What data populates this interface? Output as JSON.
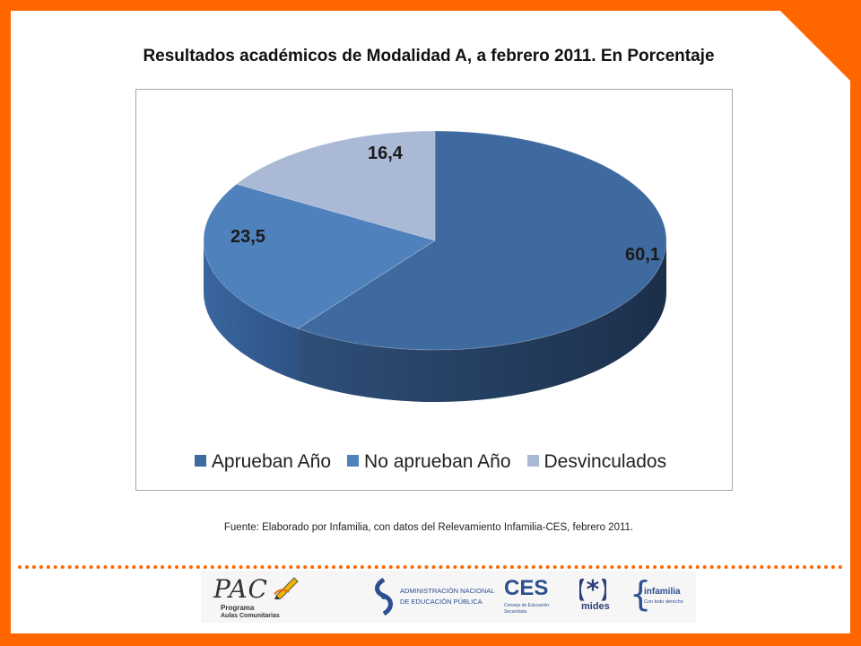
{
  "title": "Resultados académicos de Modalidad A, a febrero 2011. En Porcentaje",
  "source": "Fuente: Elaborado por Infamilia, con datos del Relevamiento Infamilia-CES, febrero 2011.",
  "colors": {
    "border": "#ff6600",
    "aprueban": "#3f6a9f",
    "no_aprueban": "#4f81bd",
    "desvinculados": "#a9b9d6"
  },
  "chart_data": {
    "type": "pie",
    "style": "3d",
    "title": "Resultados académicos de Modalidad A, a febrero 2011. En Porcentaje",
    "legend_placement": "bottom",
    "slices": [
      {
        "label": "Aprueban Año",
        "value": 60.1,
        "display": "60,1",
        "color": "#3f6a9f"
      },
      {
        "label": "No aprueban Año",
        "value": 23.5,
        "display": "23,5",
        "color": "#4f81bd"
      },
      {
        "label": "Desvinculados",
        "value": 16.4,
        "display": "16,4",
        "color": "#a9b9d6"
      }
    ]
  },
  "logos": {
    "pac": {
      "name": "PAC",
      "line1": "Programa",
      "line2": "Aulas Comunitarias"
    },
    "anep": {
      "line1": "ADMINISTRACIÓN NACIONAL",
      "line2": "DE EDUCACIÓN PÚBLICA"
    },
    "ces": {
      "name": "CES",
      "line1": "Consejo de Educación",
      "line2": "Secundaria"
    },
    "mides": {
      "name": "mides"
    },
    "infamilia": {
      "name": "infamilia",
      "tagline": "Con todo derecho"
    }
  }
}
